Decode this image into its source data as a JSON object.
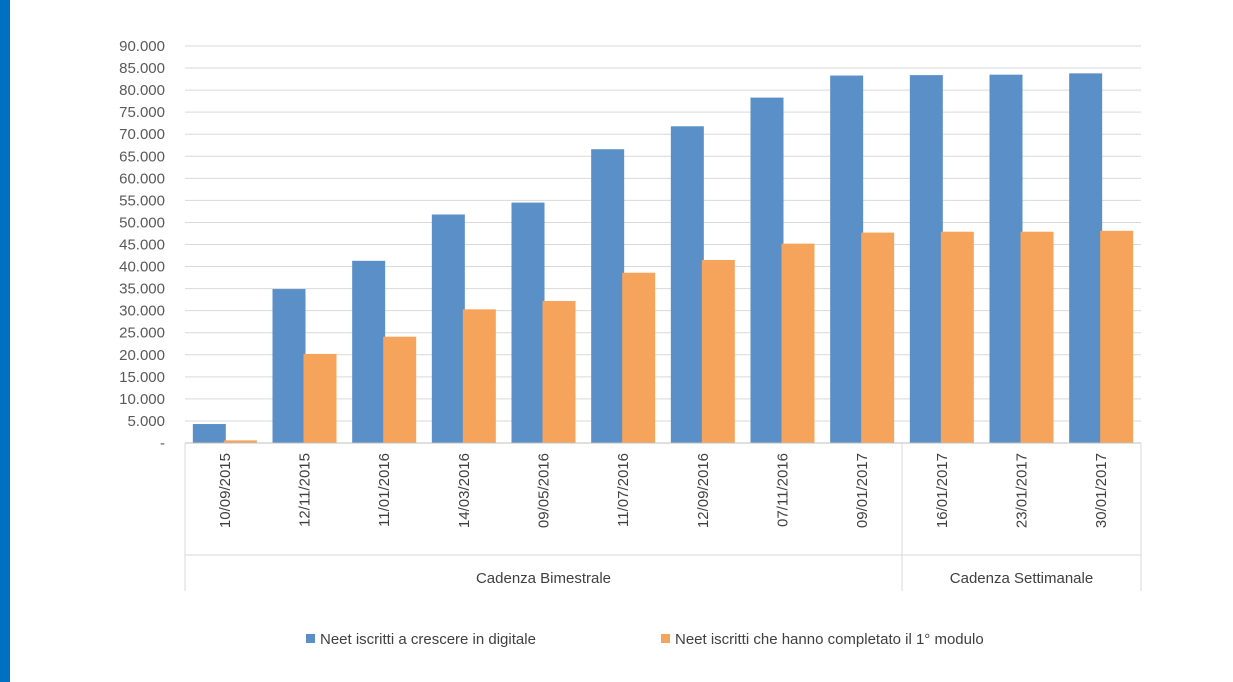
{
  "chart_data": {
    "type": "bar",
    "categories": [
      "10/09/2015",
      "12/11/2015",
      "11/01/2016",
      "14/03/2016",
      "09/05/2016",
      "11/07/2016",
      "12/09/2016",
      "07/11/2016",
      "09/01/2017",
      "16/01/2017",
      "23/01/2017",
      "30/01/2017"
    ],
    "series": [
      {
        "name": "Neet iscritti a crescere in digitale",
        "color": "#5b8fc7",
        "values": [
          4300,
          34900,
          41300,
          51800,
          54500,
          66600,
          71800,
          78300,
          83300,
          83400,
          83500,
          83800
        ]
      },
      {
        "name": "Neet iscritti che hanno completato il 1° modulo",
        "color": "#f6a45c",
        "values": [
          600,
          20200,
          24100,
          30300,
          32200,
          38600,
          41500,
          45200,
          47700,
          47900,
          47900,
          48100
        ]
      }
    ],
    "y_ticks": [
      "-",
      "5.000",
      "10.000",
      "15.000",
      "20.000",
      "25.000",
      "30.000",
      "35.000",
      "40.000",
      "45.000",
      "50.000",
      "55.000",
      "60.000",
      "65.000",
      "70.000",
      "75.000",
      "80.000",
      "85.000",
      "90.000"
    ],
    "ylim": [
      0,
      90000
    ],
    "grid": true,
    "legend_position": "bottom",
    "groups": [
      {
        "label": "Cadenza Bimestrale",
        "count": 9
      },
      {
        "label": "Cadenza Settimanale",
        "count": 3
      }
    ],
    "title": "",
    "xlabel": "",
    "ylabel": ""
  }
}
